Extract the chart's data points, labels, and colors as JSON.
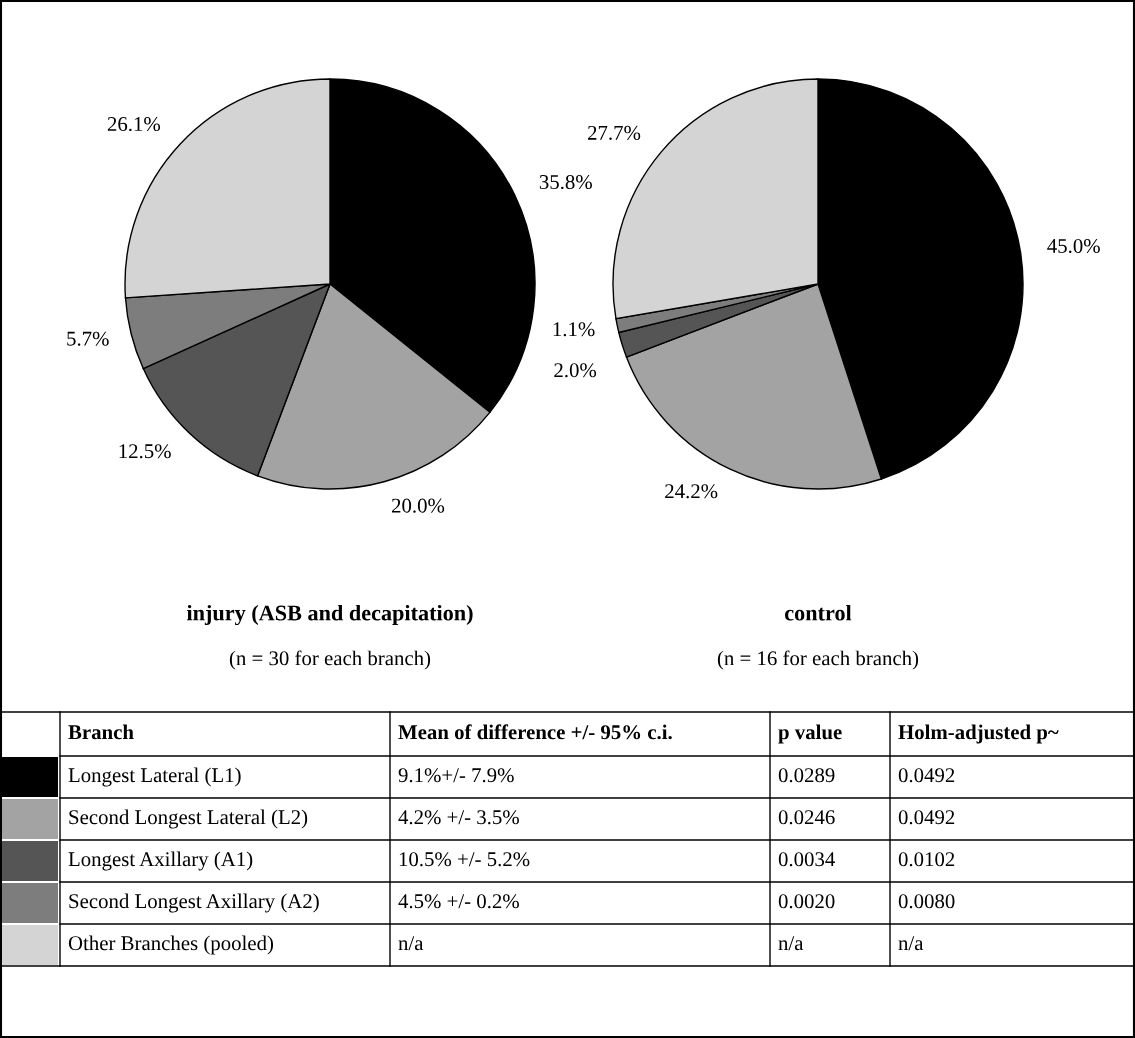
{
  "chart_data": [
    {
      "type": "pie",
      "title": "injury (ASB and decapitation)",
      "subtitle": "(n = 30 for each branch)",
      "legend": "bottom",
      "categories": [
        "Longest Lateral (L1)",
        "Second Longest Lateral (L2)",
        "Longest Axillary (A1)",
        "Second Longest Axillary (A2)",
        "Other Branches (pooled)"
      ],
      "values": [
        35.8,
        20.0,
        12.5,
        5.7,
        26.1
      ],
      "value_labels": [
        "35.8%",
        "20.0%",
        "12.5%",
        "5.7%",
        "26.1%"
      ],
      "colors": [
        "#000000",
        "#a3a3a3",
        "#555555",
        "#7d7d7d",
        "#d4d4d4"
      ]
    },
    {
      "type": "pie",
      "title": "control",
      "subtitle": "(n = 16 for each branch)",
      "values": [
        45.0,
        24.2,
        2.0,
        1.1,
        27.7
      ],
      "value_labels": [
        "45.0%",
        "24.2%",
        "2.0%",
        "1.1%",
        "27.7%"
      ],
      "colors": [
        "#000000",
        "#a3a3a3",
        "#555555",
        "#7d7d7d",
        "#d4d4d4"
      ]
    },
    {
      "type": "other",
      "annotations": [
        "Branch",
        "Mean of difference +/- 95% c.i.",
        "p value",
        "Holm-adjusted p~",
        "9.1%+/- 7.9%",
        "0.0289",
        "0.0492",
        "4.2% +/- 3.5%",
        "0.0246",
        "0.0492",
        "10.5% +/- 5.2%",
        "0.0034",
        "0.0102",
        "4.5% +/- 0.2%",
        "0.0020",
        "0.0080",
        "n/a",
        "n/a",
        "n/a"
      ]
    }
  ]
}
